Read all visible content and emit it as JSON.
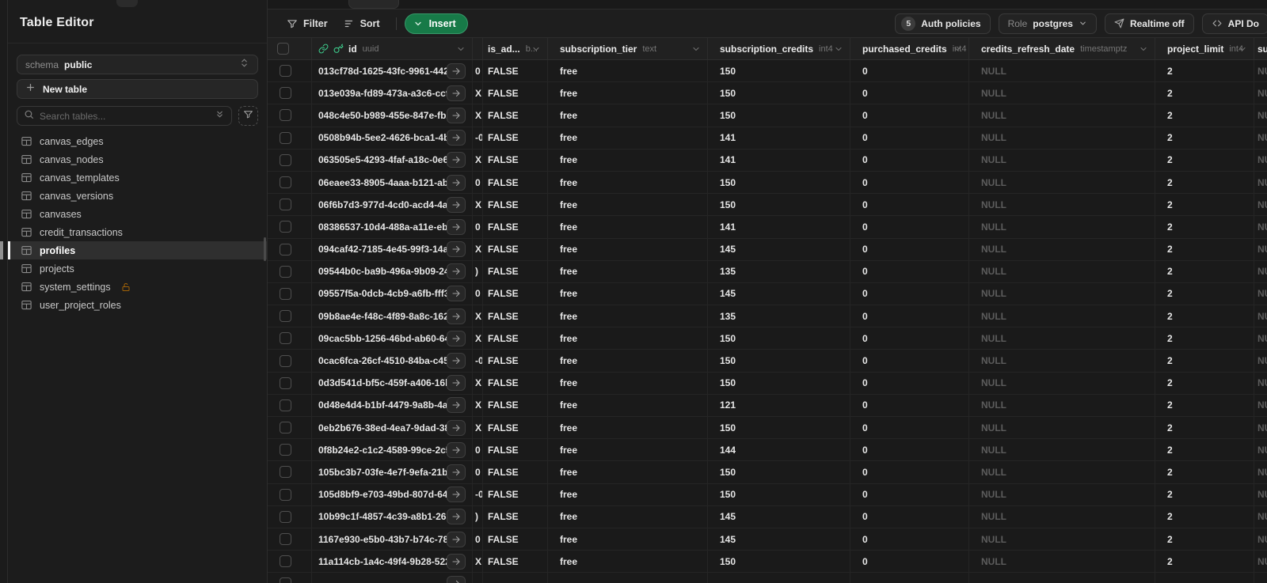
{
  "colors": {
    "accent_green": "#3ecf8e",
    "insert_button_green": "#177a48",
    "lock_amber": "#a16207"
  },
  "sidebar": {
    "title": "Table Editor",
    "schema_label": "schema",
    "schema_value": "public",
    "new_table_label": "New table",
    "search_placeholder": "Search tables...",
    "tables": [
      {
        "name": "canvas_edges"
      },
      {
        "name": "canvas_nodes"
      },
      {
        "name": "canvas_templates"
      },
      {
        "name": "canvas_versions"
      },
      {
        "name": "canvases"
      },
      {
        "name": "credit_transactions"
      },
      {
        "name": "profiles",
        "selected": true
      },
      {
        "name": "projects"
      },
      {
        "name": "system_settings",
        "locked": true
      },
      {
        "name": "user_project_roles"
      }
    ]
  },
  "toolbar": {
    "filter_label": "Filter",
    "sort_label": "Sort",
    "insert_label": "Insert",
    "auth_policies_count": "5",
    "auth_policies_label": "Auth policies",
    "role_label": "Role",
    "role_value": "postgres",
    "realtime_label": "Realtime off",
    "api_docs_label": "API Do"
  },
  "grid": {
    "columns": [
      {
        "key": "id",
        "label": "id",
        "type": "uuid",
        "icons": [
          "link",
          "key"
        ],
        "chevron": true
      },
      {
        "key": "frag",
        "label": "",
        "type": "",
        "chevron": false
      },
      {
        "key": "is_admin",
        "label": "is_ad...",
        "type": "b...",
        "chevron": true
      },
      {
        "key": "subscription_tier",
        "label": "subscription_tier",
        "type": "text",
        "chevron": true
      },
      {
        "key": "subscription_credits",
        "label": "subscription_credits",
        "type": "int4",
        "chevron": true
      },
      {
        "key": "purchased_credits",
        "label": "purchased_credits",
        "type": "int4",
        "chevron": true
      },
      {
        "key": "credits_refresh_date",
        "label": "credits_refresh_date",
        "type": "timestamptz",
        "chevron": true
      },
      {
        "key": "project_limit",
        "label": "project_limit",
        "type": "int4",
        "chevron": true
      },
      {
        "key": "subscription_last",
        "label": "su",
        "type": "",
        "chevron": false
      }
    ],
    "rows": [
      {
        "id": "013cf78d-1625-43fc-9961-442189...",
        "frag": "0",
        "is_admin": "FALSE",
        "subscription_tier": "free",
        "subscription_credits": "150",
        "purchased_credits": "0",
        "credits_refresh_date": "NULL",
        "project_limit": "2",
        "subscription_last": "NULL"
      },
      {
        "id": "013e039a-fd89-473a-a3c6-ccfa9...",
        "frag": "X",
        "is_admin": "FALSE",
        "subscription_tier": "free",
        "subscription_credits": "150",
        "purchased_credits": "0",
        "credits_refresh_date": "NULL",
        "project_limit": "2",
        "subscription_last": "NULL"
      },
      {
        "id": "048c4e50-b989-455e-847e-fb2f...",
        "frag": "X",
        "is_admin": "FALSE",
        "subscription_tier": "free",
        "subscription_credits": "150",
        "purchased_credits": "0",
        "credits_refresh_date": "NULL",
        "project_limit": "2",
        "subscription_last": "NULL"
      },
      {
        "id": "0508b94b-5ee2-4626-bca1-4bca...",
        "frag": "-0",
        "is_admin": "FALSE",
        "subscription_tier": "free",
        "subscription_credits": "141",
        "purchased_credits": "0",
        "credits_refresh_date": "NULL",
        "project_limit": "2",
        "subscription_last": "NULL"
      },
      {
        "id": "063505e5-4293-4faf-a18c-0e65b...",
        "frag": "X",
        "is_admin": "FALSE",
        "subscription_tier": "free",
        "subscription_credits": "141",
        "purchased_credits": "0",
        "credits_refresh_date": "NULL",
        "project_limit": "2",
        "subscription_last": "NULL"
      },
      {
        "id": "06eaee33-8905-4aaa-b121-ab552...",
        "frag": "0",
        "is_admin": "FALSE",
        "subscription_tier": "free",
        "subscription_credits": "150",
        "purchased_credits": "0",
        "credits_refresh_date": "NULL",
        "project_limit": "2",
        "subscription_last": "NULL"
      },
      {
        "id": "06f6b7d3-977d-4cd0-acd4-4a78...",
        "frag": "X",
        "is_admin": "FALSE",
        "subscription_tier": "free",
        "subscription_credits": "150",
        "purchased_credits": "0",
        "credits_refresh_date": "NULL",
        "project_limit": "2",
        "subscription_last": "NULL"
      },
      {
        "id": "08386537-10d4-488a-a11e-eb5a6...",
        "frag": "0",
        "is_admin": "FALSE",
        "subscription_tier": "free",
        "subscription_credits": "141",
        "purchased_credits": "0",
        "credits_refresh_date": "NULL",
        "project_limit": "2",
        "subscription_last": "NULL"
      },
      {
        "id": "094caf42-7185-4e45-99f3-14abee...",
        "frag": "X",
        "is_admin": "FALSE",
        "subscription_tier": "free",
        "subscription_credits": "145",
        "purchased_credits": "0",
        "credits_refresh_date": "NULL",
        "project_limit": "2",
        "subscription_last": "NULL"
      },
      {
        "id": "09544b0c-ba9b-496a-9b09-244...",
        "frag": ")",
        "is_admin": "FALSE",
        "subscription_tier": "free",
        "subscription_credits": "135",
        "purchased_credits": "0",
        "credits_refresh_date": "NULL",
        "project_limit": "2",
        "subscription_last": "NULL"
      },
      {
        "id": "09557f5a-0dcb-4cb9-a6fb-fff366...",
        "frag": "0",
        "is_admin": "FALSE",
        "subscription_tier": "free",
        "subscription_credits": "145",
        "purchased_credits": "0",
        "credits_refresh_date": "NULL",
        "project_limit": "2",
        "subscription_last": "NULL"
      },
      {
        "id": "09b8ae4e-f48c-4f89-8a8c-1629b...",
        "frag": "X",
        "is_admin": "FALSE",
        "subscription_tier": "free",
        "subscription_credits": "135",
        "purchased_credits": "0",
        "credits_refresh_date": "NULL",
        "project_limit": "2",
        "subscription_last": "NULL"
      },
      {
        "id": "09cac5bb-1256-46bd-ab60-64ed...",
        "frag": "X",
        "is_admin": "FALSE",
        "subscription_tier": "free",
        "subscription_credits": "150",
        "purchased_credits": "0",
        "credits_refresh_date": "NULL",
        "project_limit": "2",
        "subscription_last": "NULL"
      },
      {
        "id": "0cac6fca-26cf-4510-84ba-c4580...",
        "frag": "-0",
        "is_admin": "FALSE",
        "subscription_tier": "free",
        "subscription_credits": "150",
        "purchased_credits": "0",
        "credits_refresh_date": "NULL",
        "project_limit": "2",
        "subscription_last": "NULL"
      },
      {
        "id": "0d3d541d-bf5c-459f-a406-16b93...",
        "frag": "X",
        "is_admin": "FALSE",
        "subscription_tier": "free",
        "subscription_credits": "150",
        "purchased_credits": "0",
        "credits_refresh_date": "NULL",
        "project_limit": "2",
        "subscription_last": "NULL"
      },
      {
        "id": "0d48e4d4-b1bf-4479-9a8b-4a4b...",
        "frag": "X",
        "is_admin": "FALSE",
        "subscription_tier": "free",
        "subscription_credits": "121",
        "purchased_credits": "0",
        "credits_refresh_date": "NULL",
        "project_limit": "2",
        "subscription_last": "NULL"
      },
      {
        "id": "0eb2b676-38ed-4ea7-9dad-38e6...",
        "frag": "X",
        "is_admin": "FALSE",
        "subscription_tier": "free",
        "subscription_credits": "150",
        "purchased_credits": "0",
        "credits_refresh_date": "NULL",
        "project_limit": "2",
        "subscription_last": "NULL"
      },
      {
        "id": "0f8b24e2-c1c2-4589-99ce-2c52d...",
        "frag": "0",
        "is_admin": "FALSE",
        "subscription_tier": "free",
        "subscription_credits": "144",
        "purchased_credits": "0",
        "credits_refresh_date": "NULL",
        "project_limit": "2",
        "subscription_last": "NULL"
      },
      {
        "id": "105bc3b7-03fe-4e7f-9efa-21bb40...",
        "frag": "0",
        "is_admin": "FALSE",
        "subscription_tier": "free",
        "subscription_credits": "150",
        "purchased_credits": "0",
        "credits_refresh_date": "NULL",
        "project_limit": "2",
        "subscription_last": "NULL"
      },
      {
        "id": "105d8bf9-e703-49bd-807d-645e...",
        "frag": "-0",
        "is_admin": "FALSE",
        "subscription_tier": "free",
        "subscription_credits": "150",
        "purchased_credits": "0",
        "credits_refresh_date": "NULL",
        "project_limit": "2",
        "subscription_last": "NULL"
      },
      {
        "id": "10b99c1f-4857-4c39-a8b1-263b8...",
        "frag": ")",
        "is_admin": "FALSE",
        "subscription_tier": "free",
        "subscription_credits": "145",
        "purchased_credits": "0",
        "credits_refresh_date": "NULL",
        "project_limit": "2",
        "subscription_last": "NULL"
      },
      {
        "id": "1167e930-e5b0-43b7-b74c-788c9...",
        "frag": "0",
        "is_admin": "FALSE",
        "subscription_tier": "free",
        "subscription_credits": "145",
        "purchased_credits": "0",
        "credits_refresh_date": "NULL",
        "project_limit": "2",
        "subscription_last": "NULL"
      },
      {
        "id": "11a114cb-1a4c-49f4-9b28-52219ec...",
        "frag": "X",
        "is_admin": "FALSE",
        "subscription_tier": "free",
        "subscription_credits": "150",
        "purchased_credits": "0",
        "credits_refresh_date": "NULL",
        "project_limit": "2",
        "subscription_last": "NULL"
      },
      {
        "id": "",
        "frag": "",
        "is_admin": "",
        "subscription_tier": "",
        "subscription_credits": "",
        "purchased_credits": "",
        "credits_refresh_date": "",
        "project_limit": "",
        "subscription_last": ""
      }
    ]
  }
}
